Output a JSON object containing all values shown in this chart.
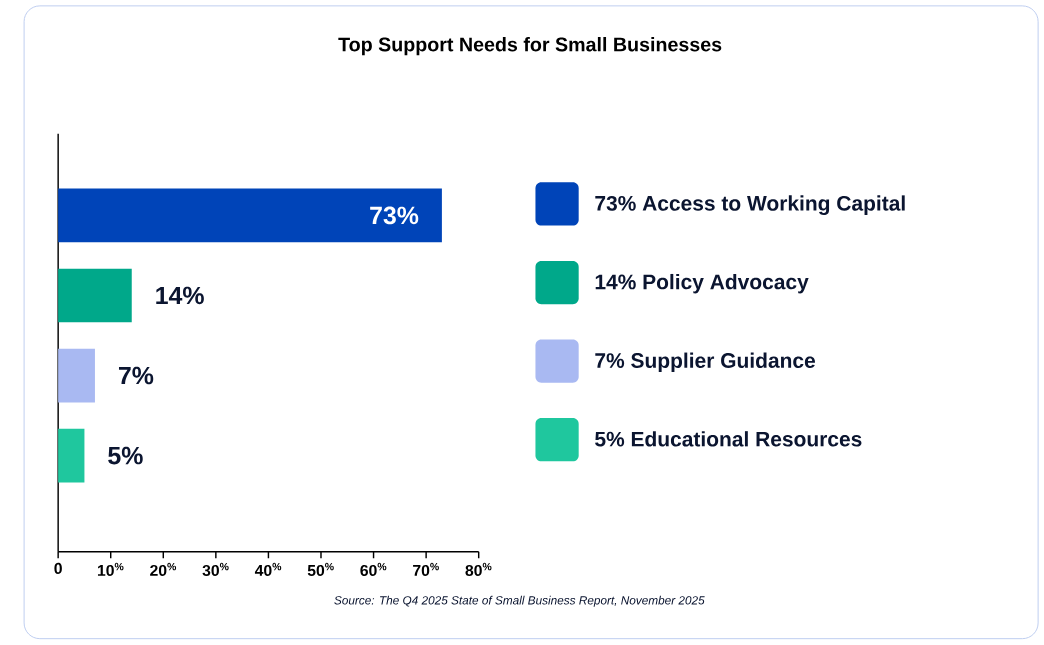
{
  "chart_data": {
    "type": "bar",
    "orientation": "horizontal",
    "title": "Top Support Needs for Small Businesses",
    "categories": [
      null,
      null,
      null,
      null
    ],
    "series": [
      {
        "name": "73% Access to Working Capital",
        "color": "#0044b8",
        "values": [
          73,
          null,
          null,
          null
        ],
        "value_labels": [
          "73%",
          null,
          null,
          null
        ]
      },
      {
        "name": "14% Policy Advocacy",
        "color": "#00a88a",
        "values": [
          null,
          14,
          null,
          null
        ],
        "value_labels": [
          null,
          "14%",
          null,
          null
        ]
      },
      {
        "name": "7% Supplier Guidance",
        "color": "#a9b9f2",
        "values": [
          null,
          null,
          7,
          null
        ],
        "value_labels": [
          null,
          null,
          "7%",
          null
        ]
      },
      {
        "name": "5% Educational Resources",
        "color": "#1fc79e",
        "values": [
          null,
          null,
          null,
          5
        ],
        "value_labels": [
          null,
          null,
          null,
          "5%"
        ]
      }
    ],
    "xlim": [
      0,
      80
    ],
    "xticks": [
      0,
      {
        "value": 10,
        "label": "10$^{%}$"
      },
      {
        "value": 20,
        "label": "20$^{%}$"
      },
      {
        "value": 30,
        "label": "30$^{%}$"
      },
      {
        "value": 40,
        "label": "40$^{%}$"
      },
      {
        "value": 50,
        "label": "50$^{%}$"
      },
      {
        "value": 60,
        "label": "60$^{%}$"
      },
      {
        "value": 70,
        "label": "70$^{%}$"
      },
      {
        "value": 80,
        "label": "80$^{%}$"
      }
    ],
    "legend": "right",
    "grid": false,
    "annotations": [
      "Source: The Q4 2025 State of Small Business Report, November 2025"
    ]
  }
}
